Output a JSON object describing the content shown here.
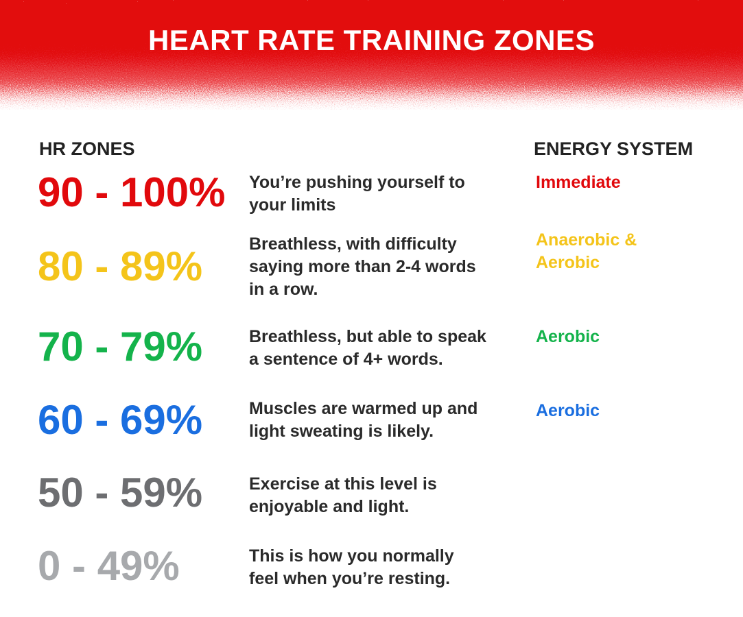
{
  "header": {
    "title": "HEART RATE TRAINING ZONES"
  },
  "columns": {
    "zones": "HR ZONES",
    "energy": "ENERGY SYSTEM"
  },
  "rows": [
    {
      "zone": "90 - 100%",
      "color": "#e1090c",
      "description": [
        "You’re pushing yourself to",
        "your limits"
      ],
      "energy": [
        "Immediate"
      ]
    },
    {
      "zone": "80 - 89%",
      "color": "#f4c41a",
      "description": [
        "Breathless, with difficulty",
        "saying more than 2-4 words",
        "in a row."
      ],
      "energy": [
        "Anaerobic &",
        "Aerobic"
      ]
    },
    {
      "zone": "70 - 79%",
      "color": "#14b34b",
      "description": [
        "Breathless, but able to speak",
        "a sentence of 4+ words."
      ],
      "energy": [
        "Aerobic"
      ]
    },
    {
      "zone": "60 - 69%",
      "color": "#1a6ee0",
      "description": [
        "Muscles are warmed up and",
        "light sweating is likely."
      ],
      "energy": [
        "Aerobic"
      ]
    },
    {
      "zone": "50 - 59%",
      "color": "#6d6e71",
      "description": [
        "Exercise at this level is",
        "enjoyable and light."
      ],
      "energy": []
    },
    {
      "zone": "0 - 49%",
      "color": "#a7a9ac",
      "description": [
        "This is how you normally",
        "feel when you’re resting."
      ],
      "energy": []
    }
  ]
}
